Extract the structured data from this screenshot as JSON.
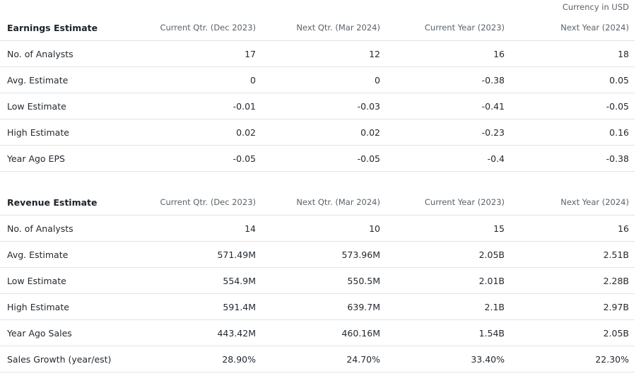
{
  "currency_note": "Currency in USD",
  "earnings": {
    "title": "Earnings Estimate",
    "columns": [
      "Current Qtr. (Dec 2023)",
      "Next Qtr. (Mar 2024)",
      "Current Year (2023)",
      "Next Year (2024)"
    ],
    "rows": [
      {
        "label": "No. of Analysts",
        "values": [
          "17",
          "12",
          "16",
          "18"
        ]
      },
      {
        "label": "Avg. Estimate",
        "values": [
          "0",
          "0",
          "-0.38",
          "0.05"
        ]
      },
      {
        "label": "Low Estimate",
        "values": [
          "-0.01",
          "-0.03",
          "-0.41",
          "-0.05"
        ]
      },
      {
        "label": "High Estimate",
        "values": [
          "0.02",
          "0.02",
          "-0.23",
          "0.16"
        ]
      },
      {
        "label": "Year Ago EPS",
        "values": [
          "-0.05",
          "-0.05",
          "-0.4",
          "-0.38"
        ]
      }
    ]
  },
  "revenue": {
    "title": "Revenue Estimate",
    "columns": [
      "Current Qtr. (Dec 2023)",
      "Next Qtr. (Mar 2024)",
      "Current Year (2023)",
      "Next Year (2024)"
    ],
    "rows": [
      {
        "label": "No. of Analysts",
        "values": [
          "14",
          "10",
          "15",
          "16"
        ]
      },
      {
        "label": "Avg. Estimate",
        "values": [
          "571.49M",
          "573.96M",
          "2.05B",
          "2.51B"
        ]
      },
      {
        "label": "Low Estimate",
        "values": [
          "554.9M",
          "550.5M",
          "2.01B",
          "2.28B"
        ]
      },
      {
        "label": "High Estimate",
        "values": [
          "591.4M",
          "639.7M",
          "2.1B",
          "2.97B"
        ]
      },
      {
        "label": "Year Ago Sales",
        "values": [
          "443.42M",
          "460.16M",
          "1.54B",
          "2.05B"
        ]
      },
      {
        "label": "Sales Growth (year/est)",
        "values": [
          "28.90%",
          "24.70%",
          "33.40%",
          "22.30%"
        ]
      }
    ]
  }
}
